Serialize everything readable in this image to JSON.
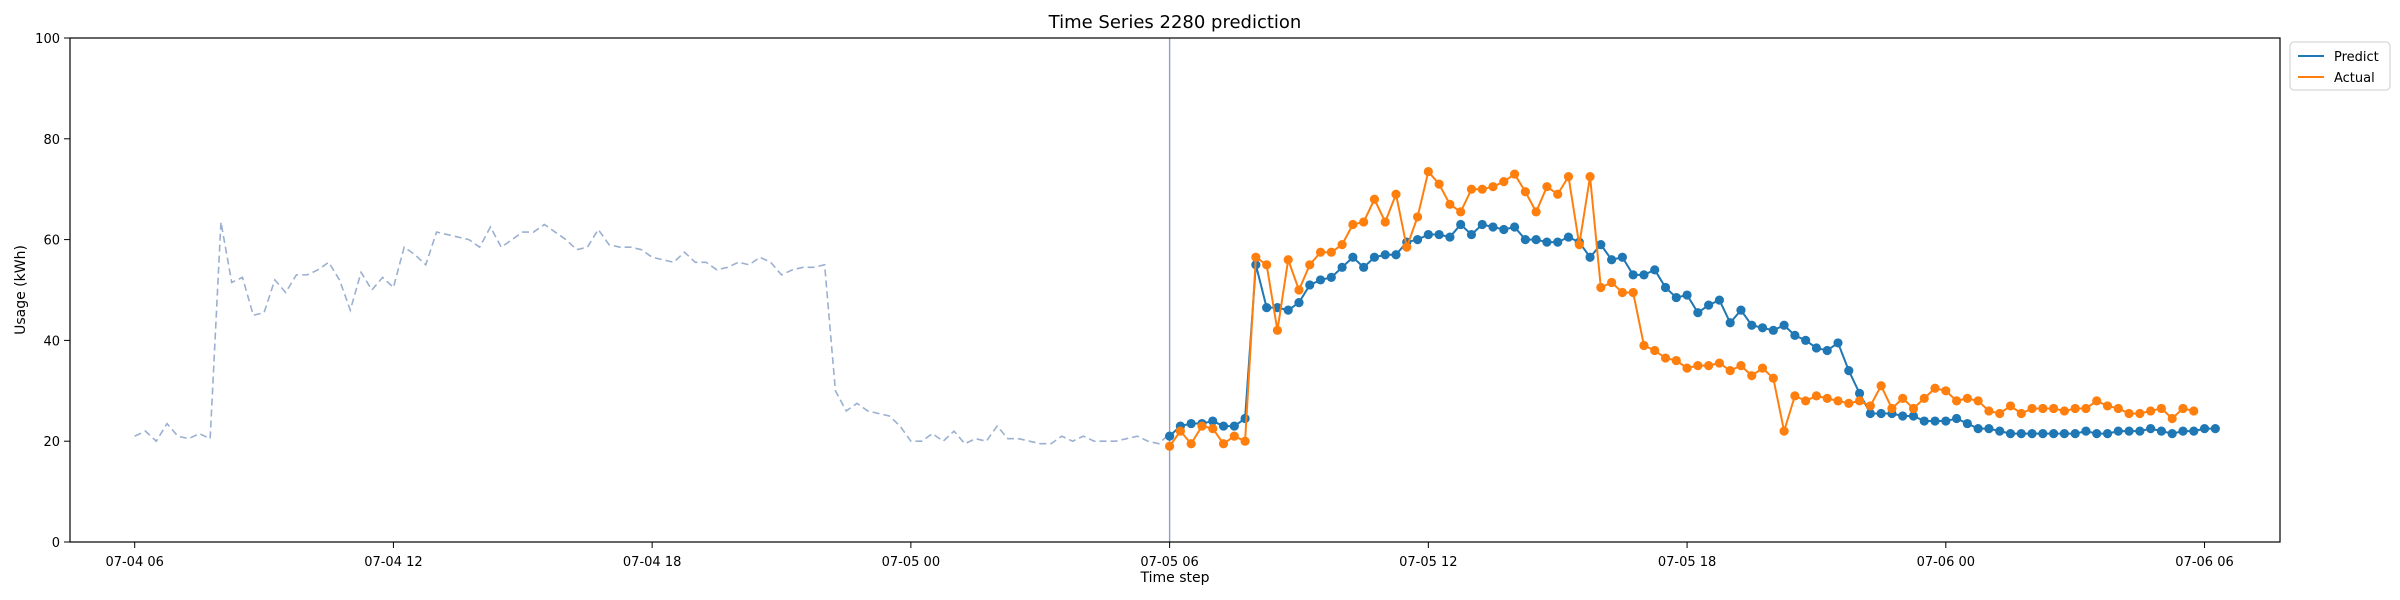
{
  "chart_data": {
    "type": "line",
    "title": "Time Series 2280 prediction",
    "xlabel": "Time step",
    "ylabel": "Usage (kWh)",
    "ylim": [
      0,
      100
    ],
    "yticks": [
      0,
      20,
      40,
      60,
      80,
      100
    ],
    "x_axis": {
      "tick_labels": [
        "07-04 06",
        "07-04 12",
        "07-04 18",
        "07-05 00",
        "07-05 06",
        "07-05 12",
        "07-05 18",
        "07-06 00",
        "07-06 06"
      ],
      "range_hours": [
        -1.5,
        49.75
      ],
      "step_hours": 0.25
    },
    "forecast_start": "07-05 06",
    "legend": {
      "placement": "outside-top-right",
      "entries": [
        "Predict",
        "Actual"
      ]
    },
    "colors": {
      "history": "#9bb0d0",
      "predict": "#1f77b4",
      "actual": "#ff7f0e",
      "divider": "#8aa3cc"
    },
    "history": {
      "start": "07-04 06",
      "values": [
        21,
        22,
        20,
        23.5,
        21,
        20.5,
        21.5,
        20.5,
        63.5,
        51.5,
        52.5,
        45,
        45.5,
        52,
        49.5,
        53,
        53,
        54,
        55.5,
        52,
        46,
        53.5,
        50,
        52.5,
        50.5,
        58.5,
        57,
        55,
        61.5,
        61,
        60.5,
        60,
        58.5,
        62.5,
        58.5,
        60,
        61.5,
        61.5,
        63,
        61.5,
        60,
        58,
        58.5,
        62,
        59,
        58.5,
        58.5,
        58,
        56.5,
        56,
        55.5,
        57.5,
        55.5,
        55.5,
        54,
        54.5,
        55.5,
        55,
        56.5,
        55.5,
        53,
        54,
        54.5,
        54.5,
        55,
        30,
        26,
        27.5,
        26,
        25.5,
        25,
        23,
        20,
        20,
        21.5,
        20,
        22,
        19.5,
        20.5,
        20,
        23,
        20.5,
        20.5,
        20,
        19.5,
        19.5,
        21,
        20,
        21,
        20,
        20,
        20,
        20.5,
        21,
        20,
        19.5,
        21.5
      ]
    },
    "series": [
      {
        "name": "Predict",
        "start": "07-05 06",
        "values": [
          21,
          23,
          23.5,
          23.5,
          24,
          23,
          23,
          24.5,
          55,
          46.5,
          46.5,
          46,
          47.5,
          51,
          52,
          52.5,
          54.5,
          56.5,
          54.5,
          56.5,
          57,
          57,
          59.5,
          60,
          61,
          61,
          60.5,
          63,
          61,
          63,
          62.5,
          62,
          62.5,
          60,
          60,
          59.5,
          59.5,
          60.5,
          59.5,
          56.5,
          59,
          56,
          56.5,
          53,
          53,
          54,
          50.5,
          48.5,
          49,
          45.5,
          47,
          48,
          43.5,
          46,
          43,
          42.5,
          42,
          43,
          41,
          40,
          38.5,
          38,
          39.5,
          34,
          29.5,
          25.5,
          25.5,
          25.5,
          25,
          25,
          24,
          24,
          24,
          24.5,
          23.5,
          22.5,
          22.5,
          22,
          21.5,
          21.5,
          21.5,
          21.5,
          21.5,
          21.5,
          21.5,
          22,
          21.5,
          21.5,
          22,
          22,
          22,
          22.5,
          22,
          21.5,
          22,
          22,
          22.5,
          22.5
        ]
      },
      {
        "name": "Actual",
        "start": "07-05 06",
        "values": [
          19,
          22,
          19.5,
          23,
          22.5,
          19.5,
          21,
          20,
          56.5,
          55,
          42,
          56,
          50,
          55,
          57.5,
          57.5,
          59,
          63,
          63.5,
          68,
          63.5,
          69,
          58.5,
          64.5,
          73.5,
          71,
          67,
          65.5,
          70,
          70,
          70.5,
          71.5,
          73,
          69.5,
          65.5,
          70.5,
          69,
          72.5,
          59,
          72.5,
          50.5,
          51.5,
          49.5,
          49.5,
          39,
          38,
          36.5,
          36,
          34.5,
          35,
          35,
          35.5,
          34,
          35,
          33,
          34.5,
          32.5,
          22,
          29,
          28,
          29,
          28.5,
          28,
          27.5,
          28,
          27,
          31,
          26.5,
          28.5,
          26.5,
          28.5,
          30.5,
          30,
          28,
          28.5,
          28,
          26,
          25.5,
          27,
          25.5,
          26.5,
          26.5,
          26.5,
          26,
          26.5,
          26.5,
          28,
          27,
          26.5,
          25.5,
          25.5,
          26,
          26.5,
          24.5,
          26.5,
          26
        ]
      }
    ]
  }
}
